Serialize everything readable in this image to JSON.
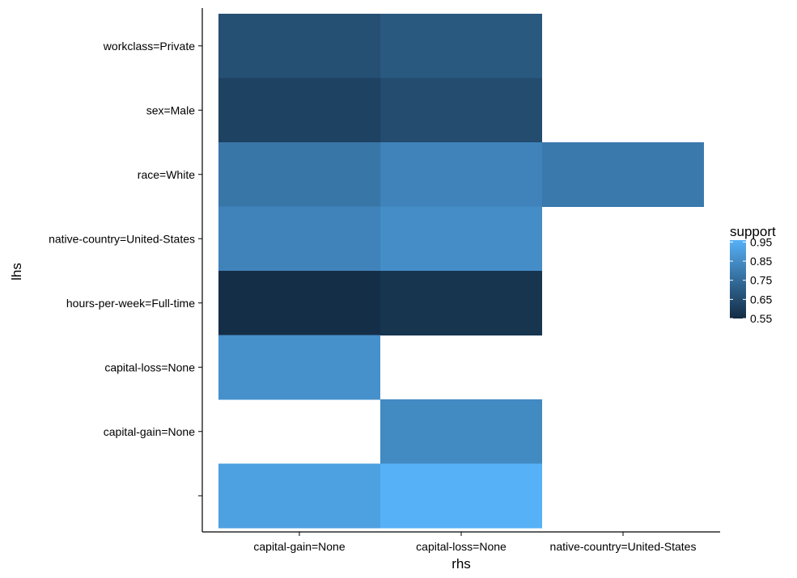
{
  "chart_data": {
    "type": "heatmap",
    "title": "",
    "xlabel": "rhs",
    "ylabel": "lhs",
    "x_categories": [
      "capital-gain=None",
      "capital-loss=None",
      "native-country=United-States"
    ],
    "y_categories": [
      "workclass=Private",
      "sex=Male",
      "race=White",
      "native-country=United-States",
      "hours-per-week=Full-time",
      "capital-loss=None",
      "capital-gain=None",
      ""
    ],
    "cells": [
      {
        "x": "capital-gain=None",
        "y": "workclass=Private",
        "value": 0.66
      },
      {
        "x": "capital-loss=None",
        "y": "workclass=Private",
        "value": 0.69
      },
      {
        "x": "capital-gain=None",
        "y": "sex=Male",
        "value": 0.62
      },
      {
        "x": "capital-loss=None",
        "y": "sex=Male",
        "value": 0.65
      },
      {
        "x": "capital-gain=None",
        "y": "race=White",
        "value": 0.78
      },
      {
        "x": "capital-loss=None",
        "y": "race=White",
        "value": 0.82
      },
      {
        "x": "native-country=United-States",
        "y": "race=White",
        "value": 0.79
      },
      {
        "x": "capital-gain=None",
        "y": "native-country=United-States",
        "value": 0.82
      },
      {
        "x": "capital-loss=None",
        "y": "native-country=United-States",
        "value": 0.85
      },
      {
        "x": "capital-gain=None",
        "y": "hours-per-week=Full-time",
        "value": 0.56
      },
      {
        "x": "capital-loss=None",
        "y": "hours-per-week=Full-time",
        "value": 0.58
      },
      {
        "x": "capital-gain=None",
        "y": "capital-loss=None",
        "value": 0.86
      },
      {
        "x": "capital-loss=None",
        "y": "capital-gain=None",
        "value": 0.84
      },
      {
        "x": "capital-gain=None",
        "y": "",
        "value": 0.91
      },
      {
        "x": "capital-loss=None",
        "y": "",
        "value": 0.96
      }
    ],
    "legend": {
      "title": "support",
      "ticks": [
        0.95,
        0.85,
        0.75,
        0.65,
        0.55
      ],
      "tick_labels": [
        "0.95",
        "0.85",
        "0.75",
        "0.65",
        "0.55"
      ],
      "range": [
        0.55,
        0.96
      ],
      "low_color": "#132B43",
      "high_color": "#56B1F7",
      "placement": "right"
    },
    "grid": false
  }
}
